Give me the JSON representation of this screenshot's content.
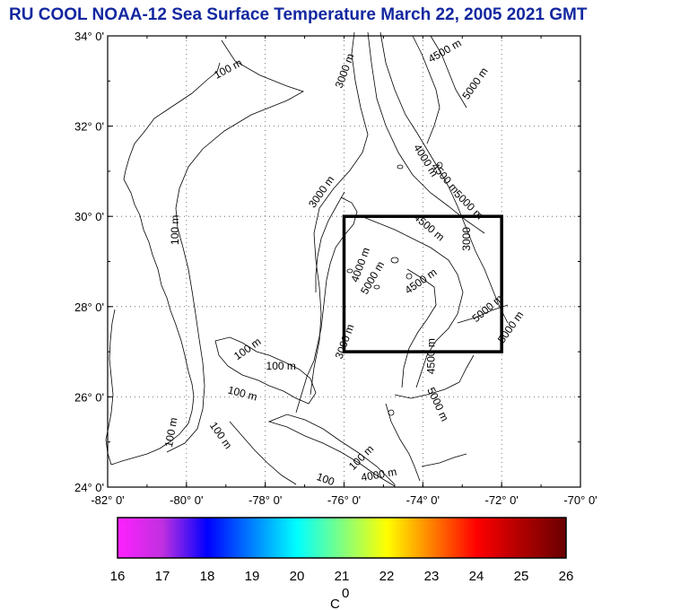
{
  "title": "RU COOL  NOAA-12 Sea Surface Temperature March 22, 2005 2021 GMT",
  "map": {
    "lon_range": [
      -82,
      -70
    ],
    "lat_range": [
      24,
      34
    ],
    "lon_ticks": [
      {
        "value": -82,
        "label": "-82° 0'"
      },
      {
        "value": -80,
        "label": "-80° 0'"
      },
      {
        "value": -78,
        "label": "-78° 0'"
      },
      {
        "value": -76,
        "label": "-76° 0'"
      },
      {
        "value": -74,
        "label": "-74° 0'"
      },
      {
        "value": -72,
        "label": "-72° 0'"
      },
      {
        "value": -70,
        "label": "-70° 0'"
      }
    ],
    "lat_ticks": [
      {
        "value": 34,
        "label": "34° 0'"
      },
      {
        "value": 32,
        "label": "32° 0'"
      },
      {
        "value": 30,
        "label": "30° 0'"
      },
      {
        "value": 28,
        "label": "28° 0'"
      },
      {
        "value": 26,
        "label": "26° 0'"
      },
      {
        "value": 24,
        "label": "24° 0'"
      }
    ],
    "grid": true,
    "study_box": {
      "lon": [
        -76,
        -72
      ],
      "lat": [
        27,
        30
      ]
    },
    "contour_labels": [
      {
        "text": "100 m",
        "lon": -78.9,
        "lat": 33.2,
        "rot": -28
      },
      {
        "text": "100 m",
        "lon": -80.2,
        "lat": 29.7,
        "rot": -90
      },
      {
        "text": "3000 m",
        "lon": -75.9,
        "lat": 33.2,
        "rot": -70
      },
      {
        "text": "4500 m",
        "lon": -73.4,
        "lat": 33.6,
        "rot": -30
      },
      {
        "text": "5000 m",
        "lon": -72.6,
        "lat": 32.9,
        "rot": -55
      },
      {
        "text": "4000 m",
        "lon": -74.0,
        "lat": 31.2,
        "rot": 58
      },
      {
        "text": "4500 m",
        "lon": -73.5,
        "lat": 30.8,
        "rot": 50
      },
      {
        "text": "5000 m",
        "lon": -72.9,
        "lat": 30.2,
        "rot": 45
      },
      {
        "text": "3000 m",
        "lon": -76.5,
        "lat": 30.5,
        "rot": -55
      },
      {
        "text": "4500 m",
        "lon": -73.9,
        "lat": 29.7,
        "rot": 40
      },
      {
        "text": "3000",
        "lon": -72.8,
        "lat": 29.5,
        "rot": -90
      },
      {
        "text": "4000 m",
        "lon": -75.5,
        "lat": 28.9,
        "rot": -70
      },
      {
        "text": "5000 m",
        "lon": -75.2,
        "lat": 28.6,
        "rot": -60
      },
      {
        "text": "4500 m",
        "lon": -74.0,
        "lat": 28.5,
        "rot": -35
      },
      {
        "text": "5000 m",
        "lon": -72.3,
        "lat": 27.9,
        "rot": -40
      },
      {
        "text": "5000 m",
        "lon": -71.7,
        "lat": 27.5,
        "rot": -55
      },
      {
        "text": "3000 m",
        "lon": -75.9,
        "lat": 27.2,
        "rot": -70
      },
      {
        "text": "4500 m",
        "lon": -73.7,
        "lat": 26.9,
        "rot": -90
      },
      {
        "text": "100 m",
        "lon": -78.4,
        "lat": 27.0,
        "rot": -35
      },
      {
        "text": "100 m",
        "lon": -77.6,
        "lat": 26.6,
        "rot": 0
      },
      {
        "text": "100 m",
        "lon": -78.6,
        "lat": 26.0,
        "rot": 15
      },
      {
        "text": "100 m",
        "lon": -80.3,
        "lat": 25.2,
        "rot": -80
      },
      {
        "text": "100 m",
        "lon": -79.2,
        "lat": 25.1,
        "rot": 55
      },
      {
        "text": "5000 m",
        "lon": -73.7,
        "lat": 25.8,
        "rot": 65
      },
      {
        "text": "100 m",
        "lon": -75.5,
        "lat": 24.6,
        "rot": -45
      },
      {
        "text": "4000 m",
        "lon": -75.1,
        "lat": 24.2,
        "rot": -10
      },
      {
        "text": "100",
        "lon": -76.5,
        "lat": 24.1,
        "rot": 20
      }
    ]
  },
  "colorbar": {
    "min": 16,
    "max": 26,
    "ticks": [
      "16",
      "17",
      "18",
      "19",
      "20",
      "21",
      "22",
      "23",
      "24",
      "25",
      "26"
    ],
    "unit": "C",
    "unit_sup": "0",
    "stops": [
      "#ff20ff",
      "#c030e0",
      "#0000ff",
      "#0080ff",
      "#00ffff",
      "#80ff80",
      "#ffff00",
      "#ff8000",
      "#ff0000",
      "#b00000",
      "#6a0000"
    ]
  }
}
